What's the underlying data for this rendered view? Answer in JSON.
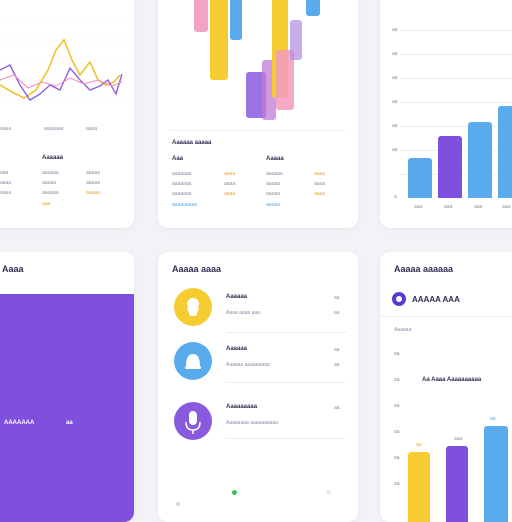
{
  "card1": {
    "axis": [
      "aaaa",
      "aaaaaaa",
      "aaaa"
    ],
    "heading": "Aaaaaa",
    "rows": [
      [
        "aaa",
        "aaaaaa",
        "aaaaa"
      ],
      [
        "aaaa",
        "aaaaa",
        "aaaaa"
      ],
      [
        "aaaa",
        "aaaaaa",
        "aaaaa"
      ],
      [
        "",
        "aaa",
        ""
      ]
    ],
    "colors": {
      "line1": "#f0c030",
      "line2": "#9060e0",
      "line3": "#f08ab8"
    }
  },
  "card2": {
    "heading": "Aaaaaa aaaaa",
    "col1_head": "Aaa",
    "col2_head": "Aaaaa",
    "rows": [
      [
        "aaaaaaa",
        "aaaa",
        "aaaaaa",
        "aaaa"
      ],
      [
        "aaaaaaa",
        "aaaa",
        "aaaaa",
        "aaaa"
      ],
      [
        "aaaaaaa",
        "aaaa",
        "aaaaa",
        "aaaa"
      ],
      [
        "aaaaaaaaa",
        "",
        "aaaaa",
        ""
      ]
    ]
  },
  "card3": {
    "y_ticks": [
      "aa",
      "aa",
      "aa",
      "aa",
      "aa",
      "aa",
      "a"
    ],
    "x_ticks": [
      "aaa",
      "aaa",
      "aaa",
      "aaa"
    ],
    "colors": [
      "#5aa8ec",
      "#7f4fde",
      "#5aaaee",
      "#5aaaee"
    ]
  },
  "card4": {
    "heading": "Aaaa",
    "label": "AAAAAAA",
    "value": "aa",
    "accent": "#7f4fde"
  },
  "card5": {
    "heading": "Aaaaa aaaa",
    "items": [
      {
        "title": "Aaaaaa",
        "sub": "Aaaa aaaa aaa",
        "value": "aa",
        "color": "#f5cd32",
        "icon": "cupcake-icon"
      },
      {
        "title": "Aaaaaa",
        "sub": "Aaaaaa aaaaaaaaa",
        "value": "aa",
        "color": "#5aaaee",
        "icon": "bell-icon"
      },
      {
        "title": "Aaaaaaaaa",
        "sub": "Aaaaaaaa aaaaaaaaaa",
        "value": "aa",
        "color": "#8a5ade",
        "icon": "mic-icon"
      }
    ]
  },
  "card6": {
    "heading": "Aaaaa aaaaaa",
    "badge_label": "AAAAA AAA",
    "sub": "Aaaaaa",
    "y_ticks": [
      "aa",
      "aa",
      "aa",
      "aa",
      "aa",
      "aa"
    ],
    "chart_title": "Aa Aaaa Aaaaaaaaaa",
    "bar_labels": [
      "aa",
      "aaa",
      "aa"
    ],
    "colors": [
      "#f5cd32",
      "#7f4fde",
      "#5aaaee"
    ]
  }
}
